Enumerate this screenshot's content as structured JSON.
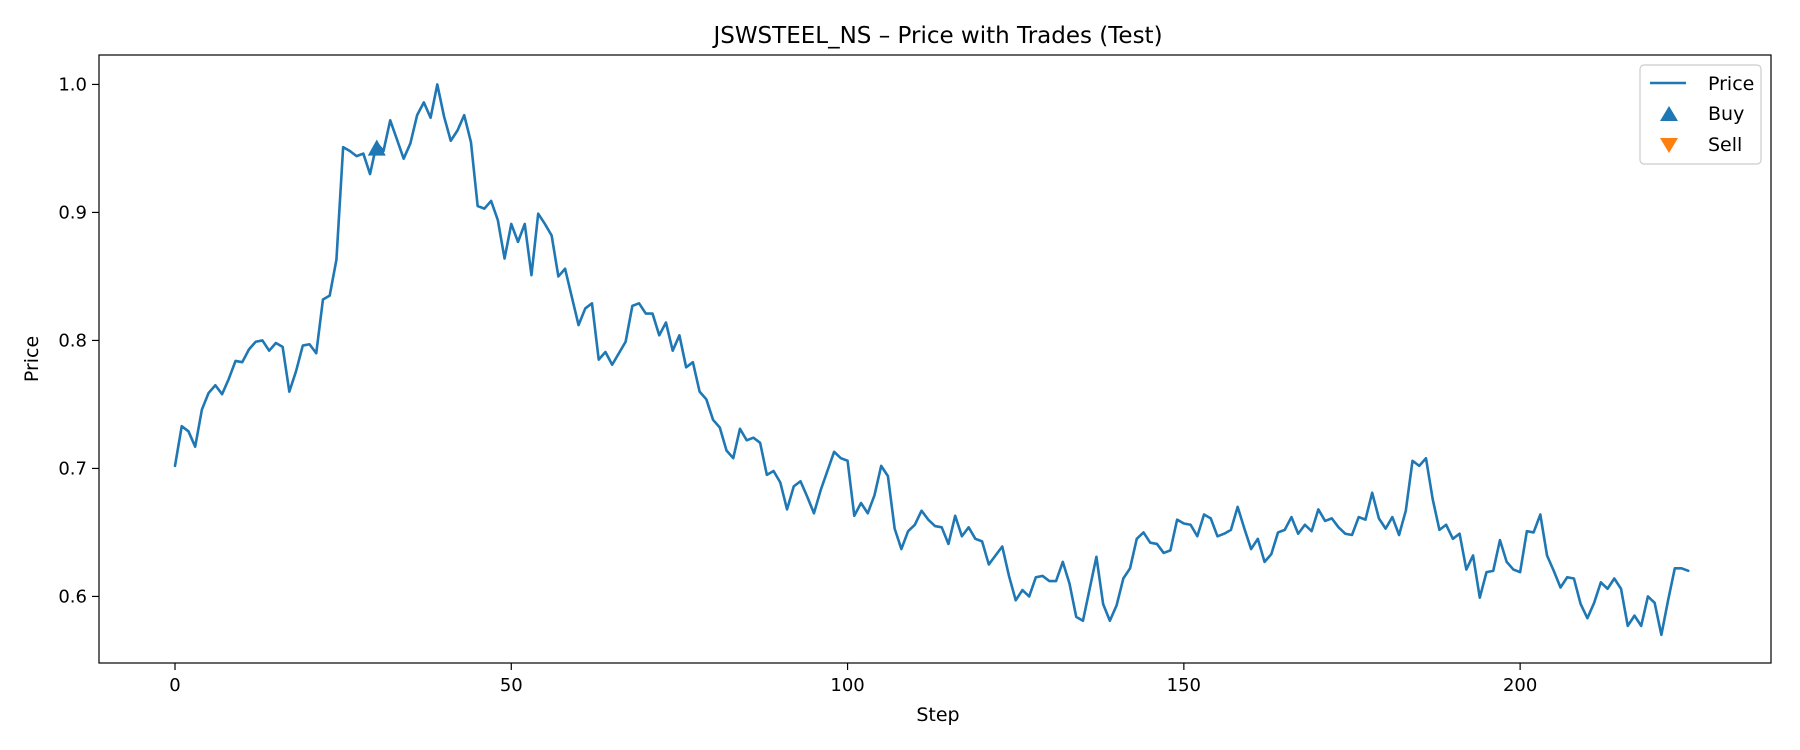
{
  "chart_data": {
    "type": "line",
    "title": "JSWSTEEL_NS – Price with Trades (Test)",
    "xlabel": "Step",
    "ylabel": "Price",
    "xlim": [
      -11.3,
      237.3
    ],
    "ylim": [
      0.548,
      1.023
    ],
    "xticks": [
      0,
      50,
      100,
      150,
      200
    ],
    "yticks": [
      0.6,
      0.7,
      0.8,
      0.9,
      1.0
    ],
    "xtick_labels": [
      "0",
      "50",
      "100",
      "150",
      "200"
    ],
    "ytick_labels": [
      "0.6",
      "0.7",
      "0.8",
      "0.9",
      "1.0"
    ],
    "grid": false,
    "legend_position": "top-right",
    "series": [
      {
        "name": "Price",
        "color": "#1f77b4",
        "x": [
          0,
          1,
          2,
          3,
          4,
          5,
          6,
          7,
          8,
          9,
          10,
          11,
          12,
          13,
          14,
          15,
          16,
          17,
          18,
          19,
          20,
          21,
          22,
          23,
          24,
          25,
          26,
          27,
          28,
          29,
          30,
          31,
          32,
          33,
          34,
          35,
          36,
          37,
          38,
          39,
          40,
          41,
          42,
          43,
          44,
          45,
          46,
          47,
          48,
          49,
          50,
          51,
          52,
          53,
          54,
          55,
          56,
          57,
          58,
          59,
          60,
          61,
          62,
          63,
          64,
          65,
          66,
          67,
          68,
          69,
          70,
          71,
          72,
          73,
          74,
          75,
          76,
          77,
          78,
          79,
          80,
          81,
          82,
          83,
          84,
          85,
          86,
          87,
          88,
          89,
          90,
          91,
          92,
          93,
          94,
          95,
          96,
          97,
          98,
          99,
          100,
          101,
          102,
          103,
          104,
          105,
          106,
          107,
          108,
          109,
          110,
          111,
          112,
          113,
          114,
          115,
          116,
          117,
          118,
          119,
          120,
          121,
          122,
          123,
          124,
          125,
          126,
          127,
          128,
          129,
          130,
          131,
          132,
          133,
          134,
          135,
          136,
          137,
          138,
          139,
          140,
          141,
          142,
          143,
          144,
          145,
          146,
          147,
          148,
          149,
          150,
          151,
          152,
          153,
          154,
          155,
          156,
          157,
          158,
          159,
          160,
          161,
          162,
          163,
          164,
          165,
          166,
          167,
          168,
          169,
          170,
          171,
          172,
          173,
          174,
          175,
          176,
          177,
          178,
          179,
          180,
          181,
          182,
          183,
          184,
          185,
          186,
          187,
          188,
          189,
          190,
          191,
          192,
          193,
          194,
          195,
          196,
          197,
          198,
          199,
          200,
          201,
          202,
          203,
          204,
          205,
          206,
          207,
          208,
          209,
          210,
          211,
          212,
          213,
          214,
          215,
          216,
          217,
          218,
          219,
          220,
          221,
          222,
          223,
          224,
          225
        ],
        "values": [
          0.702,
          0.733,
          0.729,
          0.717,
          0.746,
          0.759,
          0.765,
          0.758,
          0.77,
          0.784,
          0.783,
          0.793,
          0.799,
          0.8,
          0.792,
          0.798,
          0.795,
          0.76,
          0.776,
          0.796,
          0.797,
          0.79,
          0.832,
          0.835,
          0.863,
          0.951,
          0.948,
          0.944,
          0.946,
          0.93,
          0.954,
          0.948,
          0.972,
          0.957,
          0.942,
          0.954,
          0.976,
          0.986,
          0.974,
          1.0,
          0.975,
          0.956,
          0.964,
          0.976,
          0.955,
          0.905,
          0.903,
          0.909,
          0.894,
          0.864,
          0.891,
          0.877,
          0.891,
          0.851,
          0.899,
          0.891,
          0.882,
          0.85,
          0.856,
          0.834,
          0.812,
          0.825,
          0.829,
          0.785,
          0.791,
          0.781,
          0.79,
          0.799,
          0.827,
          0.829,
          0.821,
          0.821,
          0.804,
          0.814,
          0.792,
          0.804,
          0.779,
          0.783,
          0.76,
          0.754,
          0.738,
          0.732,
          0.714,
          0.708,
          0.731,
          0.722,
          0.724,
          0.72,
          0.695,
          0.698,
          0.689,
          0.668,
          0.686,
          0.69,
          0.678,
          0.665,
          0.683,
          0.698,
          0.713,
          0.708,
          0.706,
          0.663,
          0.673,
          0.665,
          0.679,
          0.702,
          0.694,
          0.653,
          0.637,
          0.651,
          0.656,
          0.667,
          0.66,
          0.655,
          0.654,
          0.641,
          0.663,
          0.647,
          0.654,
          0.645,
          0.643,
          0.625,
          0.632,
          0.639,
          0.616,
          0.597,
          0.605,
          0.6,
          0.615,
          0.616,
          0.612,
          0.612,
          0.627,
          0.61,
          0.584,
          0.581,
          0.606,
          0.631,
          0.594,
          0.581,
          0.593,
          0.614,
          0.622,
          0.645,
          0.65,
          0.642,
          0.641,
          0.634,
          0.636,
          0.66,
          0.657,
          0.656,
          0.647,
          0.664,
          0.661,
          0.647,
          0.649,
          0.652,
          0.67,
          0.653,
          0.637,
          0.645,
          0.627,
          0.633,
          0.65,
          0.652,
          0.662,
          0.649,
          0.656,
          0.651,
          0.668,
          0.659,
          0.661,
          0.654,
          0.649,
          0.648,
          0.662,
          0.66,
          0.681,
          0.661,
          0.653,
          0.662,
          0.648,
          0.667,
          0.706,
          0.702,
          0.708,
          0.676,
          0.652,
          0.656,
          0.645,
          0.649,
          0.621,
          0.632,
          0.599,
          0.619,
          0.62,
          0.644,
          0.627,
          0.621,
          0.619,
          0.651,
          0.65,
          0.664,
          0.632,
          0.62,
          0.607,
          0.615,
          0.614,
          0.594,
          0.583,
          0.595,
          0.611,
          0.606,
          0.614,
          0.606,
          0.577,
          0.585,
          0.577,
          0.6,
          0.595,
          0.57,
          0.597,
          0.622,
          0.622,
          0.62
        ]
      }
    ],
    "markers": [
      {
        "name": "Buy",
        "shape": "triangle-up",
        "color": "#1f77b4",
        "points": [
          {
            "x": 30,
            "y": 0.95
          }
        ]
      },
      {
        "name": "Sell",
        "shape": "triangle-down",
        "color": "#ff7f0e",
        "points": []
      }
    ],
    "legend": [
      {
        "label": "Price",
        "kind": "line",
        "color": "#1f77b4"
      },
      {
        "label": "Buy",
        "kind": "triangle-up",
        "color": "#1f77b4"
      },
      {
        "label": "Sell",
        "kind": "triangle-down",
        "color": "#ff7f0e"
      }
    ]
  }
}
